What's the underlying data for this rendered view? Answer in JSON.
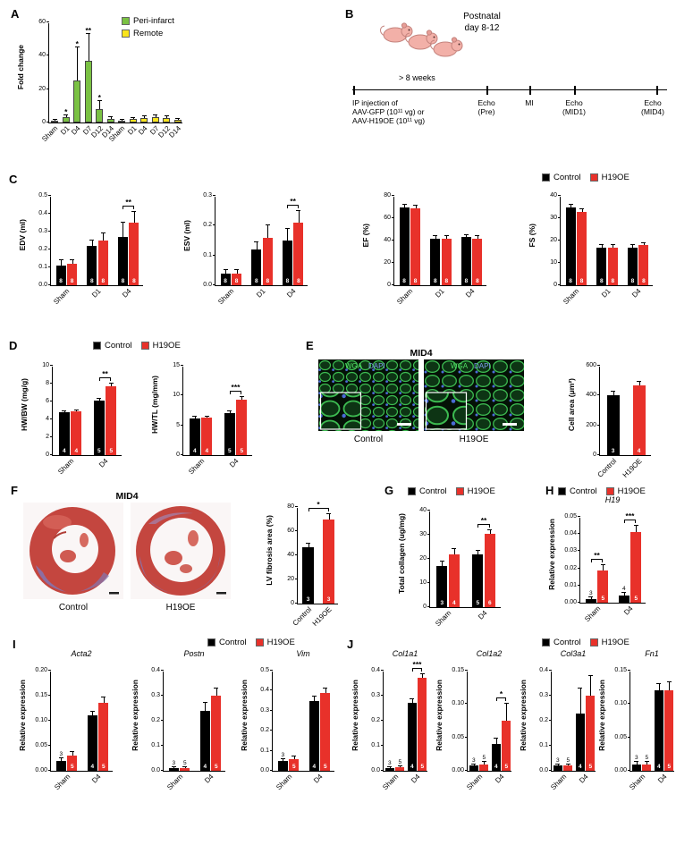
{
  "figure": {
    "panel_labels": {
      "a": "A",
      "b": "B",
      "c": "C",
      "d": "D",
      "e": "E",
      "f": "F",
      "g": "G",
      "h": "H",
      "i": "I",
      "j": "J"
    }
  },
  "colors": {
    "control": "#000000",
    "h19oe": "#e8312a",
    "peri_infarct": "#7ac143",
    "remote": "#f9e41c"
  },
  "legend": {
    "control": "Control",
    "h19oe": "H19OE",
    "peri_infarct": "Peri-infarct",
    "remote": "Remote"
  },
  "panel_b": {
    "title_line1": "Postnatal",
    "title_line2": "day 8-12",
    "interval_label": "> 8 weeks",
    "events": [
      {
        "lines": [
          "IP injection of",
          "AAV-GFP (10¹¹ vg) or",
          "AAV-H19OE (10¹¹ vg)"
        ]
      },
      {
        "lines": [
          "Echo",
          "(Pre)"
        ]
      },
      {
        "lines": [
          "MI"
        ]
      },
      {
        "lines": [
          "Echo",
          "(MID1)"
        ]
      },
      {
        "lines": [
          "Echo",
          "(MID4)"
        ]
      }
    ]
  },
  "panel_e": {
    "title": "MID4",
    "stain_labels": {
      "wga": "WGA",
      "dapi": "DAPI"
    },
    "image_labels": [
      "Control",
      "H19OE"
    ]
  },
  "panel_f": {
    "title": "MID4",
    "image_labels": [
      "Control",
      "H19OE"
    ]
  },
  "chart_data": [
    {
      "id": "fold_change",
      "type": "bar",
      "panel": "A",
      "ylabel": "Fold change",
      "ylim": [
        0,
        60
      ],
      "yticks": [
        "0",
        "20",
        "40",
        "60"
      ],
      "categories": [
        "Sham",
        "D1",
        "D4",
        "D7",
        "D12",
        "D14",
        "Sham",
        "D1",
        "D4",
        "D7",
        "D12",
        "D14"
      ],
      "bars": [
        {
          "value": 1.2,
          "error": 0.4,
          "color_key": "peri_infarct"
        },
        {
          "value": 3,
          "error": 1.5,
          "color_key": "peri_infarct"
        },
        {
          "value": 25,
          "error": 20,
          "color_key": "peri_infarct"
        },
        {
          "value": 37,
          "error": 16,
          "color_key": "peri_infarct"
        },
        {
          "value": 8,
          "error": 5,
          "color_key": "peri_infarct"
        },
        {
          "value": 2,
          "error": 1,
          "color_key": "peri_infarct"
        },
        {
          "value": 1,
          "error": 0.4,
          "color_key": "remote"
        },
        {
          "value": 2,
          "error": 0.8,
          "color_key": "remote"
        },
        {
          "value": 2.5,
          "error": 1,
          "color_key": "remote"
        },
        {
          "value": 3,
          "error": 1.5,
          "color_key": "remote"
        },
        {
          "value": 2.5,
          "error": 1,
          "color_key": "remote"
        },
        {
          "value": 1.5,
          "error": 0.6,
          "color_key": "remote"
        }
      ],
      "sig": [
        {
          "bar": 1,
          "label": "*"
        },
        {
          "bar": 2,
          "label": "*"
        },
        {
          "bar": 3,
          "label": "**"
        },
        {
          "bar": 4,
          "label": "*"
        }
      ]
    },
    {
      "id": "edv",
      "type": "bar",
      "panel": "C",
      "ylabel": "EDV (ml)",
      "ylim": [
        0,
        0.5
      ],
      "yticks": [
        "0.0",
        "0.1",
        "0.2",
        "0.3",
        "0.4",
        "0.5"
      ],
      "categories": [
        "Sham",
        "D1",
        "D4"
      ],
      "series": [
        {
          "name": "Control",
          "color_key": "control",
          "values": [
            0.11,
            0.22,
            0.27
          ],
          "errors": [
            0.03,
            0.03,
            0.08
          ],
          "ns": [
            8,
            8,
            8
          ]
        },
        {
          "name": "H19OE",
          "color_key": "h19oe",
          "values": [
            0.12,
            0.25,
            0.35
          ],
          "errors": [
            0.02,
            0.04,
            0.06
          ],
          "ns": [
            8,
            8,
            8
          ]
        }
      ],
      "sig": [
        {
          "cat": 2,
          "label": "**"
        }
      ]
    },
    {
      "id": "esv",
      "type": "bar",
      "panel": "C",
      "ylabel": "ESV (ml)",
      "ylim": [
        0,
        0.3
      ],
      "yticks": [
        "0.0",
        "0.1",
        "0.2",
        "0.3"
      ],
      "categories": [
        "Sham",
        "D1",
        "D4"
      ],
      "series": [
        {
          "name": "Control",
          "color_key": "control",
          "values": [
            0.04,
            0.12,
            0.15
          ],
          "errors": [
            0.01,
            0.025,
            0.04
          ],
          "ns": [
            8,
            8,
            8
          ]
        },
        {
          "name": "H19OE",
          "color_key": "h19oe",
          "values": [
            0.04,
            0.16,
            0.21
          ],
          "errors": [
            0.01,
            0.04,
            0.04
          ],
          "ns": [
            8,
            8,
            8
          ]
        }
      ],
      "sig": [
        {
          "cat": 2,
          "label": "**"
        }
      ]
    },
    {
      "id": "ef",
      "type": "bar",
      "panel": "C",
      "ylabel": "EF (%)",
      "ylim": [
        0,
        80
      ],
      "yticks": [
        "0",
        "20",
        "40",
        "60",
        "80"
      ],
      "categories": [
        "Sham",
        "D1",
        "D4"
      ],
      "series": [
        {
          "name": "Control",
          "color_key": "control",
          "values": [
            70,
            42,
            43
          ],
          "errors": [
            2,
            2,
            2
          ],
          "ns": [
            8,
            8,
            8
          ]
        },
        {
          "name": "H19OE",
          "color_key": "h19oe",
          "values": [
            69,
            42,
            42
          ],
          "errors": [
            2,
            2,
            2
          ],
          "ns": [
            8,
            8,
            8
          ]
        }
      ],
      "sig": []
    },
    {
      "id": "fs",
      "type": "bar",
      "panel": "C",
      "ylabel": "FS (%)",
      "ylim": [
        0,
        40
      ],
      "yticks": [
        "0",
        "10",
        "20",
        "30",
        "40"
      ],
      "categories": [
        "Sham",
        "D1",
        "D4"
      ],
      "series": [
        {
          "name": "Control",
          "color_key": "control",
          "values": [
            35,
            17,
            17
          ],
          "errors": [
            1,
            1,
            1
          ],
          "ns": [
            8,
            8,
            8
          ]
        },
        {
          "name": "H19OE",
          "color_key": "h19oe",
          "values": [
            33,
            17,
            18
          ],
          "errors": [
            1,
            1,
            1
          ],
          "ns": [
            8,
            8,
            8
          ]
        }
      ],
      "sig": []
    },
    {
      "id": "hw_bw",
      "type": "bar",
      "panel": "D",
      "ylabel": "HW/BW (mg/g)",
      "ylim": [
        0,
        10
      ],
      "yticks": [
        "0",
        "2",
        "4",
        "6",
        "8",
        "10"
      ],
      "categories": [
        "Sham",
        "D4"
      ],
      "series": [
        {
          "name": "Control",
          "color_key": "control",
          "values": [
            4.8,
            6.1
          ],
          "errors": [
            0.15,
            0.25
          ],
          "ns": [
            4,
            5
          ]
        },
        {
          "name": "H19OE",
          "color_key": "h19oe",
          "values": [
            4.9,
            7.7
          ],
          "errors": [
            0.15,
            0.35
          ],
          "ns": [
            4,
            5
          ]
        }
      ],
      "sig": [
        {
          "cat": 1,
          "label": "**"
        }
      ]
    },
    {
      "id": "hw_tl",
      "type": "bar",
      "panel": "D",
      "ylabel": "HW/TL (mg/mm)",
      "ylim": [
        0,
        15
      ],
      "yticks": [
        "0",
        "5",
        "10",
        "15"
      ],
      "categories": [
        "Sham",
        "D4"
      ],
      "series": [
        {
          "name": "Control",
          "color_key": "control",
          "values": [
            6.2,
            7.0
          ],
          "errors": [
            0.2,
            0.3
          ],
          "ns": [
            4,
            5
          ]
        },
        {
          "name": "H19OE",
          "color_key": "h19oe",
          "values": [
            6.3,
            9.3
          ],
          "errors": [
            0.2,
            0.4
          ],
          "ns": [
            4,
            5
          ]
        }
      ],
      "sig": [
        {
          "cat": 1,
          "label": "***"
        }
      ]
    },
    {
      "id": "cell_area",
      "type": "bar",
      "panel": "E",
      "ylabel": "Cell area (μm²)",
      "ylim": [
        0,
        600
      ],
      "yticks": [
        "0",
        "200",
        "400",
        "600"
      ],
      "categories": [
        "Control",
        "H19OE"
      ],
      "bars": [
        {
          "value": 405,
          "error": 20,
          "color_key": "control",
          "n": 3
        },
        {
          "value": 470,
          "error": 25,
          "color_key": "h19oe",
          "n": 4
        }
      ],
      "sig": []
    },
    {
      "id": "lv_fibrosis",
      "type": "bar",
      "panel": "F",
      "ylabel": "LV fibrosis area (%)",
      "ylim": [
        0,
        80
      ],
      "yticks": [
        "0",
        "20",
        "40",
        "60",
        "80"
      ],
      "categories": [
        "Control",
        "H19OE"
      ],
      "bars": [
        {
          "value": 47,
          "error": 3,
          "color_key": "control",
          "n": 3
        },
        {
          "value": 70,
          "error": 4,
          "color_key": "h19oe",
          "n": 3
        }
      ],
      "sig": [
        {
          "from": 0,
          "to": 1,
          "label": "*"
        }
      ]
    },
    {
      "id": "collagen",
      "type": "bar",
      "panel": "G",
      "ylabel": "Total collagen (ug/mg)",
      "ylim": [
        0,
        40
      ],
      "yticks": [
        "0",
        "10",
        "20",
        "30",
        "40"
      ],
      "categories": [
        "Sham",
        "D4"
      ],
      "series": [
        {
          "name": "Control",
          "color_key": "control",
          "values": [
            17,
            22
          ],
          "errors": [
            2,
            1.5
          ],
          "ns": [
            3,
            5
          ]
        },
        {
          "name": "H19OE",
          "color_key": "h19oe",
          "values": [
            22,
            30.5
          ],
          "errors": [
            2,
            1.5
          ],
          "ns": [
            4,
            6
          ]
        }
      ],
      "sig": [
        {
          "cat": 1,
          "label": "**"
        }
      ]
    },
    {
      "id": "h19",
      "type": "bar",
      "panel": "H",
      "title": "H19",
      "ylabel": "Relative expression",
      "ylim": [
        0,
        0.05
      ],
      "yticks": [
        "0.00",
        "0.01",
        "0.02",
        "0.03",
        "0.04",
        "0.05"
      ],
      "categories": [
        "Sham",
        "D4"
      ],
      "series": [
        {
          "name": "Control",
          "color_key": "control",
          "values": [
            0.002,
            0.004
          ],
          "errors": [
            0.001,
            0.0015
          ],
          "ns": [
            3,
            4
          ]
        },
        {
          "name": "H19OE",
          "color_key": "h19oe",
          "values": [
            0.019,
            0.041
          ],
          "errors": [
            0.003,
            0.004
          ],
          "ns": [
            5,
            5
          ]
        }
      ],
      "sig": [
        {
          "cat": 0,
          "label": "**"
        },
        {
          "cat": 1,
          "label": "***"
        }
      ]
    },
    {
      "id": "acta2",
      "type": "bar",
      "panel": "I",
      "title": "Acta2",
      "ylabel": "Relative expression",
      "ylim": [
        0,
        0.2
      ],
      "yticks": [
        "0.00",
        "0.05",
        "0.10",
        "0.15",
        "0.20"
      ],
      "categories": [
        "Sham",
        "D4"
      ],
      "series": [
        {
          "name": "Control",
          "color_key": "control",
          "values": [
            0.02,
            0.11
          ],
          "errors": [
            0.005,
            0.008
          ],
          "ns": [
            3,
            4
          ]
        },
        {
          "name": "H19OE",
          "color_key": "h19oe",
          "values": [
            0.03,
            0.135
          ],
          "errors": [
            0.008,
            0.012
          ],
          "ns": [
            5,
            5
          ]
        }
      ],
      "sig": []
    },
    {
      "id": "postn",
      "type": "bar",
      "panel": "I",
      "title": "Postn",
      "ylabel": "Relative expression",
      "ylim": [
        0,
        0.4
      ],
      "yticks": [
        "0.0",
        "0.1",
        "0.2",
        "0.3",
        "0.4"
      ],
      "categories": [
        "Sham",
        "D4"
      ],
      "series": [
        {
          "name": "Control",
          "color_key": "control",
          "values": [
            0.01,
            0.24
          ],
          "errors": [
            0.003,
            0.03
          ],
          "ns": [
            3,
            4
          ]
        },
        {
          "name": "H19OE",
          "color_key": "h19oe",
          "values": [
            0.012,
            0.3
          ],
          "errors": [
            0.004,
            0.03
          ],
          "ns": [
            5,
            5
          ]
        }
      ],
      "sig": []
    },
    {
      "id": "vim",
      "type": "bar",
      "panel": "I",
      "title": "Vim",
      "ylabel": "Relative expression",
      "ylim": [
        0,
        0.5
      ],
      "yticks": [
        "0.0",
        "0.1",
        "0.2",
        "0.3",
        "0.4",
        "0.5"
      ],
      "categories": [
        "Sham",
        "D4"
      ],
      "series": [
        {
          "name": "Control",
          "color_key": "control",
          "values": [
            0.05,
            0.35
          ],
          "errors": [
            0.01,
            0.02
          ],
          "ns": [
            3,
            4
          ]
        },
        {
          "name": "H19OE",
          "color_key": "h19oe",
          "values": [
            0.06,
            0.39
          ],
          "errors": [
            0.01,
            0.02
          ],
          "ns": [
            5,
            5
          ]
        }
      ],
      "sig": []
    },
    {
      "id": "col1a1",
      "type": "bar",
      "panel": "J",
      "title": "Col1a1",
      "ylabel": "Relative expression",
      "ylim": [
        0,
        0.4
      ],
      "yticks": [
        "0.0",
        "0.1",
        "0.2",
        "0.3",
        "0.4"
      ],
      "categories": [
        "Sham",
        "D4"
      ],
      "series": [
        {
          "name": "Control",
          "color_key": "control",
          "values": [
            0.012,
            0.27
          ],
          "errors": [
            0.004,
            0.015
          ],
          "ns": [
            3,
            4
          ]
        },
        {
          "name": "H19OE",
          "color_key": "h19oe",
          "values": [
            0.015,
            0.37
          ],
          "errors": [
            0.004,
            0.015
          ],
          "ns": [
            5,
            5
          ]
        }
      ],
      "sig": [
        {
          "cat": 1,
          "label": "***"
        }
      ]
    },
    {
      "id": "col1a2",
      "type": "bar",
      "panel": "J",
      "title": "Col1a2",
      "ylabel": "Relative expression",
      "ylim": [
        0,
        0.15
      ],
      "yticks": [
        "0.00",
        "0.05",
        "0.10",
        "0.15"
      ],
      "categories": [
        "Sham",
        "D4"
      ],
      "series": [
        {
          "name": "Control",
          "color_key": "control",
          "values": [
            0.008,
            0.04
          ],
          "errors": [
            0.002,
            0.008
          ],
          "ns": [
            3,
            4
          ]
        },
        {
          "name": "H19OE",
          "color_key": "h19oe",
          "values": [
            0.01,
            0.075
          ],
          "errors": [
            0.003,
            0.025
          ],
          "ns": [
            5,
            5
          ]
        }
      ],
      "sig": [
        {
          "cat": 1,
          "label": "*"
        }
      ]
    },
    {
      "id": "col3a1",
      "type": "bar",
      "panel": "J",
      "title": "Col3a1",
      "ylabel": "Relative expression",
      "ylim": [
        0,
        0.4
      ],
      "yticks": [
        "0.0",
        "0.1",
        "0.2",
        "0.3",
        "0.4"
      ],
      "categories": [
        "Sham",
        "D4"
      ],
      "series": [
        {
          "name": "Control",
          "color_key": "control",
          "values": [
            0.02,
            0.23
          ],
          "errors": [
            0.005,
            0.1
          ],
          "ns": [
            3,
            4
          ]
        },
        {
          "name": "H19OE",
          "color_key": "h19oe",
          "values": [
            0.02,
            0.3
          ],
          "errors": [
            0.005,
            0.08
          ],
          "ns": [
            5,
            5
          ]
        }
      ],
      "sig": []
    },
    {
      "id": "fn1",
      "type": "bar",
      "panel": "J",
      "title": "Fn1",
      "ylabel": "Relative expression",
      "ylim": [
        0,
        0.15
      ],
      "yticks": [
        "0.00",
        "0.05",
        "0.10",
        "0.15"
      ],
      "categories": [
        "Sham",
        "D4"
      ],
      "series": [
        {
          "name": "Control",
          "color_key": "control",
          "values": [
            0.01,
            0.12
          ],
          "errors": [
            0.003,
            0.01
          ],
          "ns": [
            3,
            4
          ]
        },
        {
          "name": "H19OE",
          "color_key": "h19oe",
          "values": [
            0.01,
            0.12
          ],
          "errors": [
            0.003,
            0.012
          ],
          "ns": [
            5,
            5
          ]
        }
      ],
      "sig": []
    }
  ]
}
